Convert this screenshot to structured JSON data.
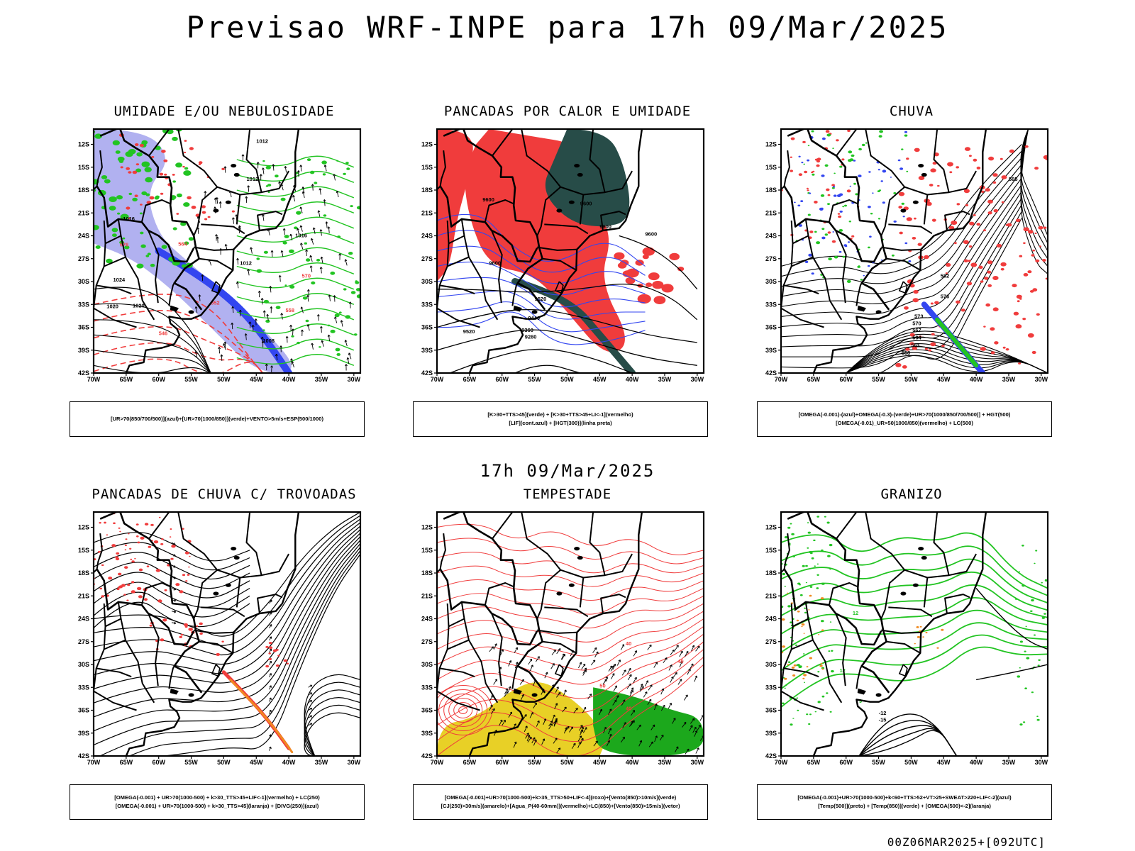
{
  "title": "Previsao WRF-INPE  para 17h 09/Mar/2025",
  "subtitle": "17h 09/Mar/2025",
  "footer": "00Z06MAR2025+[092UTC]",
  "lat_labels": [
    "12S",
    "15S",
    "18S",
    "21S",
    "24S",
    "27S",
    "30S",
    "33S",
    "36S",
    "39S",
    "42S"
  ],
  "lon_labels": [
    "70W",
    "65W",
    "60W",
    "55W",
    "50W",
    "45W",
    "40W",
    "35W",
    "30W"
  ],
  "colors": {
    "red": "#f03c3c",
    "green": "#22c422",
    "blue": "#3346f0",
    "lavender": "#a8a8ee",
    "darkteal": "#274c48",
    "yellow": "#e8d026",
    "orange": "#f08a20",
    "black": "#000000"
  },
  "panels": [
    {
      "title": "UMIDADE E/OU NEBULOSIDADE",
      "legend": [
        "[UR>70(850/700/500)](azul)+[UR>70(1000/850)](verde)+VENTO>5m/s+ESP(500/1000)"
      ],
      "contour_labels": [
        "1012",
        "1012",
        "1016",
        "1016",
        "1012",
        "1020",
        "1008",
        "576",
        "570",
        "564",
        "558",
        "552",
        "546",
        "1020",
        "1024"
      ]
    },
    {
      "title": "PANCADAS POR CALOR E UMIDADE",
      "legend": [
        "[K>30+TTS>45](verde) + [K>30+TTS>45+LI<-1](vermelho)",
        "[LIF](cont.azul) + [HGT(300)](linha preta)"
      ],
      "contour_labels": [
        "9600",
        "9600",
        "9600",
        "9600",
        "9520",
        "9520",
        "9440",
        "9360",
        "9280",
        "9600"
      ]
    },
    {
      "title": "CHUVA",
      "legend": [
        "[OMEGA(-0.001)-(azul)+OMEGA(-0.3)-(verde)+UR>70(1000/850/700/500)] + HGT(500)",
        "[OMEGA(-0.01)_UR>50(1000/850)(vermelho) + LC(500)"
      ],
      "contour_labels": [
        "582",
        "576",
        "573",
        "570",
        "567",
        "564",
        "561",
        "558",
        "585"
      ]
    },
    {
      "title": "PANCADAS DE CHUVA C/ TROVOADAS",
      "legend": [
        "[OMEGA(-0.001) + UR>70(1000-500) + k>30_TTS>45+LIF<-1](vermelho) + LC(250)",
        "[OMEGA(-0.001) + UR>70(1000-500) + k>30_TTS>45](laranja) + [DIVG(250)](azul)"
      ],
      "contour_labels": []
    },
    {
      "title": "TEMPESTADE",
      "legend": [
        "[OMEGA(-0.001)+UR>70(1000-500)+k>35_TTS>50+LIF<-4](roxo)+[Vento(850)>10m/s](verde)",
        "[CJ(250)>30m/s](amarelo)+[Agua_P(40-60mm)](vermelho)+LC(850)+[Vento(850)>15m/s](vetor)"
      ],
      "contour_labels": [
        "40",
        "40",
        "50",
        "40"
      ]
    },
    {
      "title": "GRANIZO",
      "legend": [
        "[OMEGA(-0.001)+UR>70(1000-500)+k<60+TTS>52+VT>25+SWEAT>220+LIF<-2](azul)",
        "[Temp(500)](preto) + [Temp(850)](verde) + [OMEGA(500)<-2](laranja)"
      ],
      "contour_labels": [
        "-12",
        "-15",
        "12",
        "12",
        "9"
      ]
    }
  ]
}
